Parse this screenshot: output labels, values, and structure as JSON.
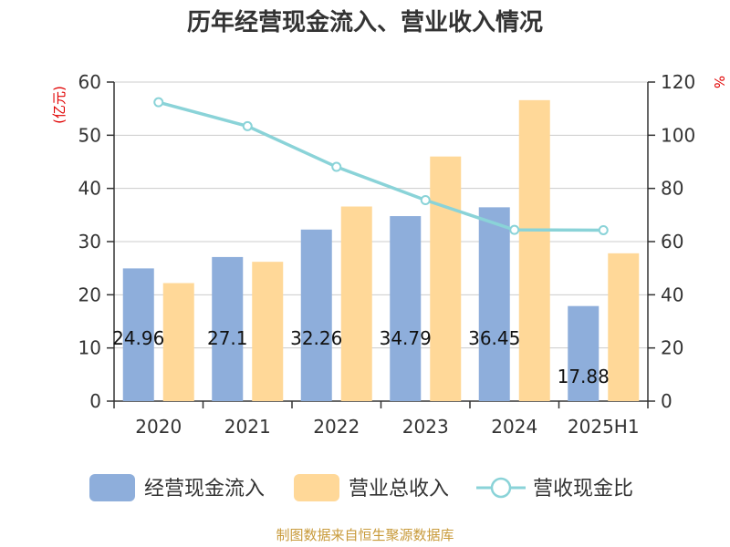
{
  "chart_data": {
    "type": "bar",
    "title": "历年经营现金流入、营业收入情况",
    "categories": [
      "2020",
      "2021",
      "2022",
      "2023",
      "2024",
      "2025H1"
    ],
    "y_left": {
      "unit_label": "(亿元)",
      "range": [
        0,
        60
      ],
      "ticks": [
        0,
        10,
        20,
        30,
        40,
        50,
        60
      ]
    },
    "y_right": {
      "unit_label": "%",
      "range": [
        0,
        120
      ],
      "ticks": [
        0,
        20,
        40,
        60,
        80,
        100,
        120
      ]
    },
    "series": [
      {
        "name": "经营现金流入",
        "type": "bar",
        "axis": "left",
        "color": "#8eaedb",
        "values": [
          24.96,
          27.1,
          32.26,
          34.79,
          36.45,
          17.88
        ],
        "value_labels": [
          "24.96",
          "27.1",
          "32.26",
          "34.79",
          "36.45",
          "17.88"
        ]
      },
      {
        "name": "营业总收入",
        "type": "bar",
        "axis": "left",
        "color": "#ffd898",
        "values": [
          22.2,
          26.2,
          36.6,
          46.0,
          56.6,
          27.8
        ]
      },
      {
        "name": "营收现金比",
        "type": "line",
        "axis": "right",
        "color": "#8ad3d8",
        "values": [
          112.4,
          103.4,
          88.1,
          75.6,
          64.4,
          64.3
        ]
      }
    ],
    "grid": true,
    "legend_position": "bottom"
  },
  "source_note": "制图数据来自恒生聚源数据库"
}
